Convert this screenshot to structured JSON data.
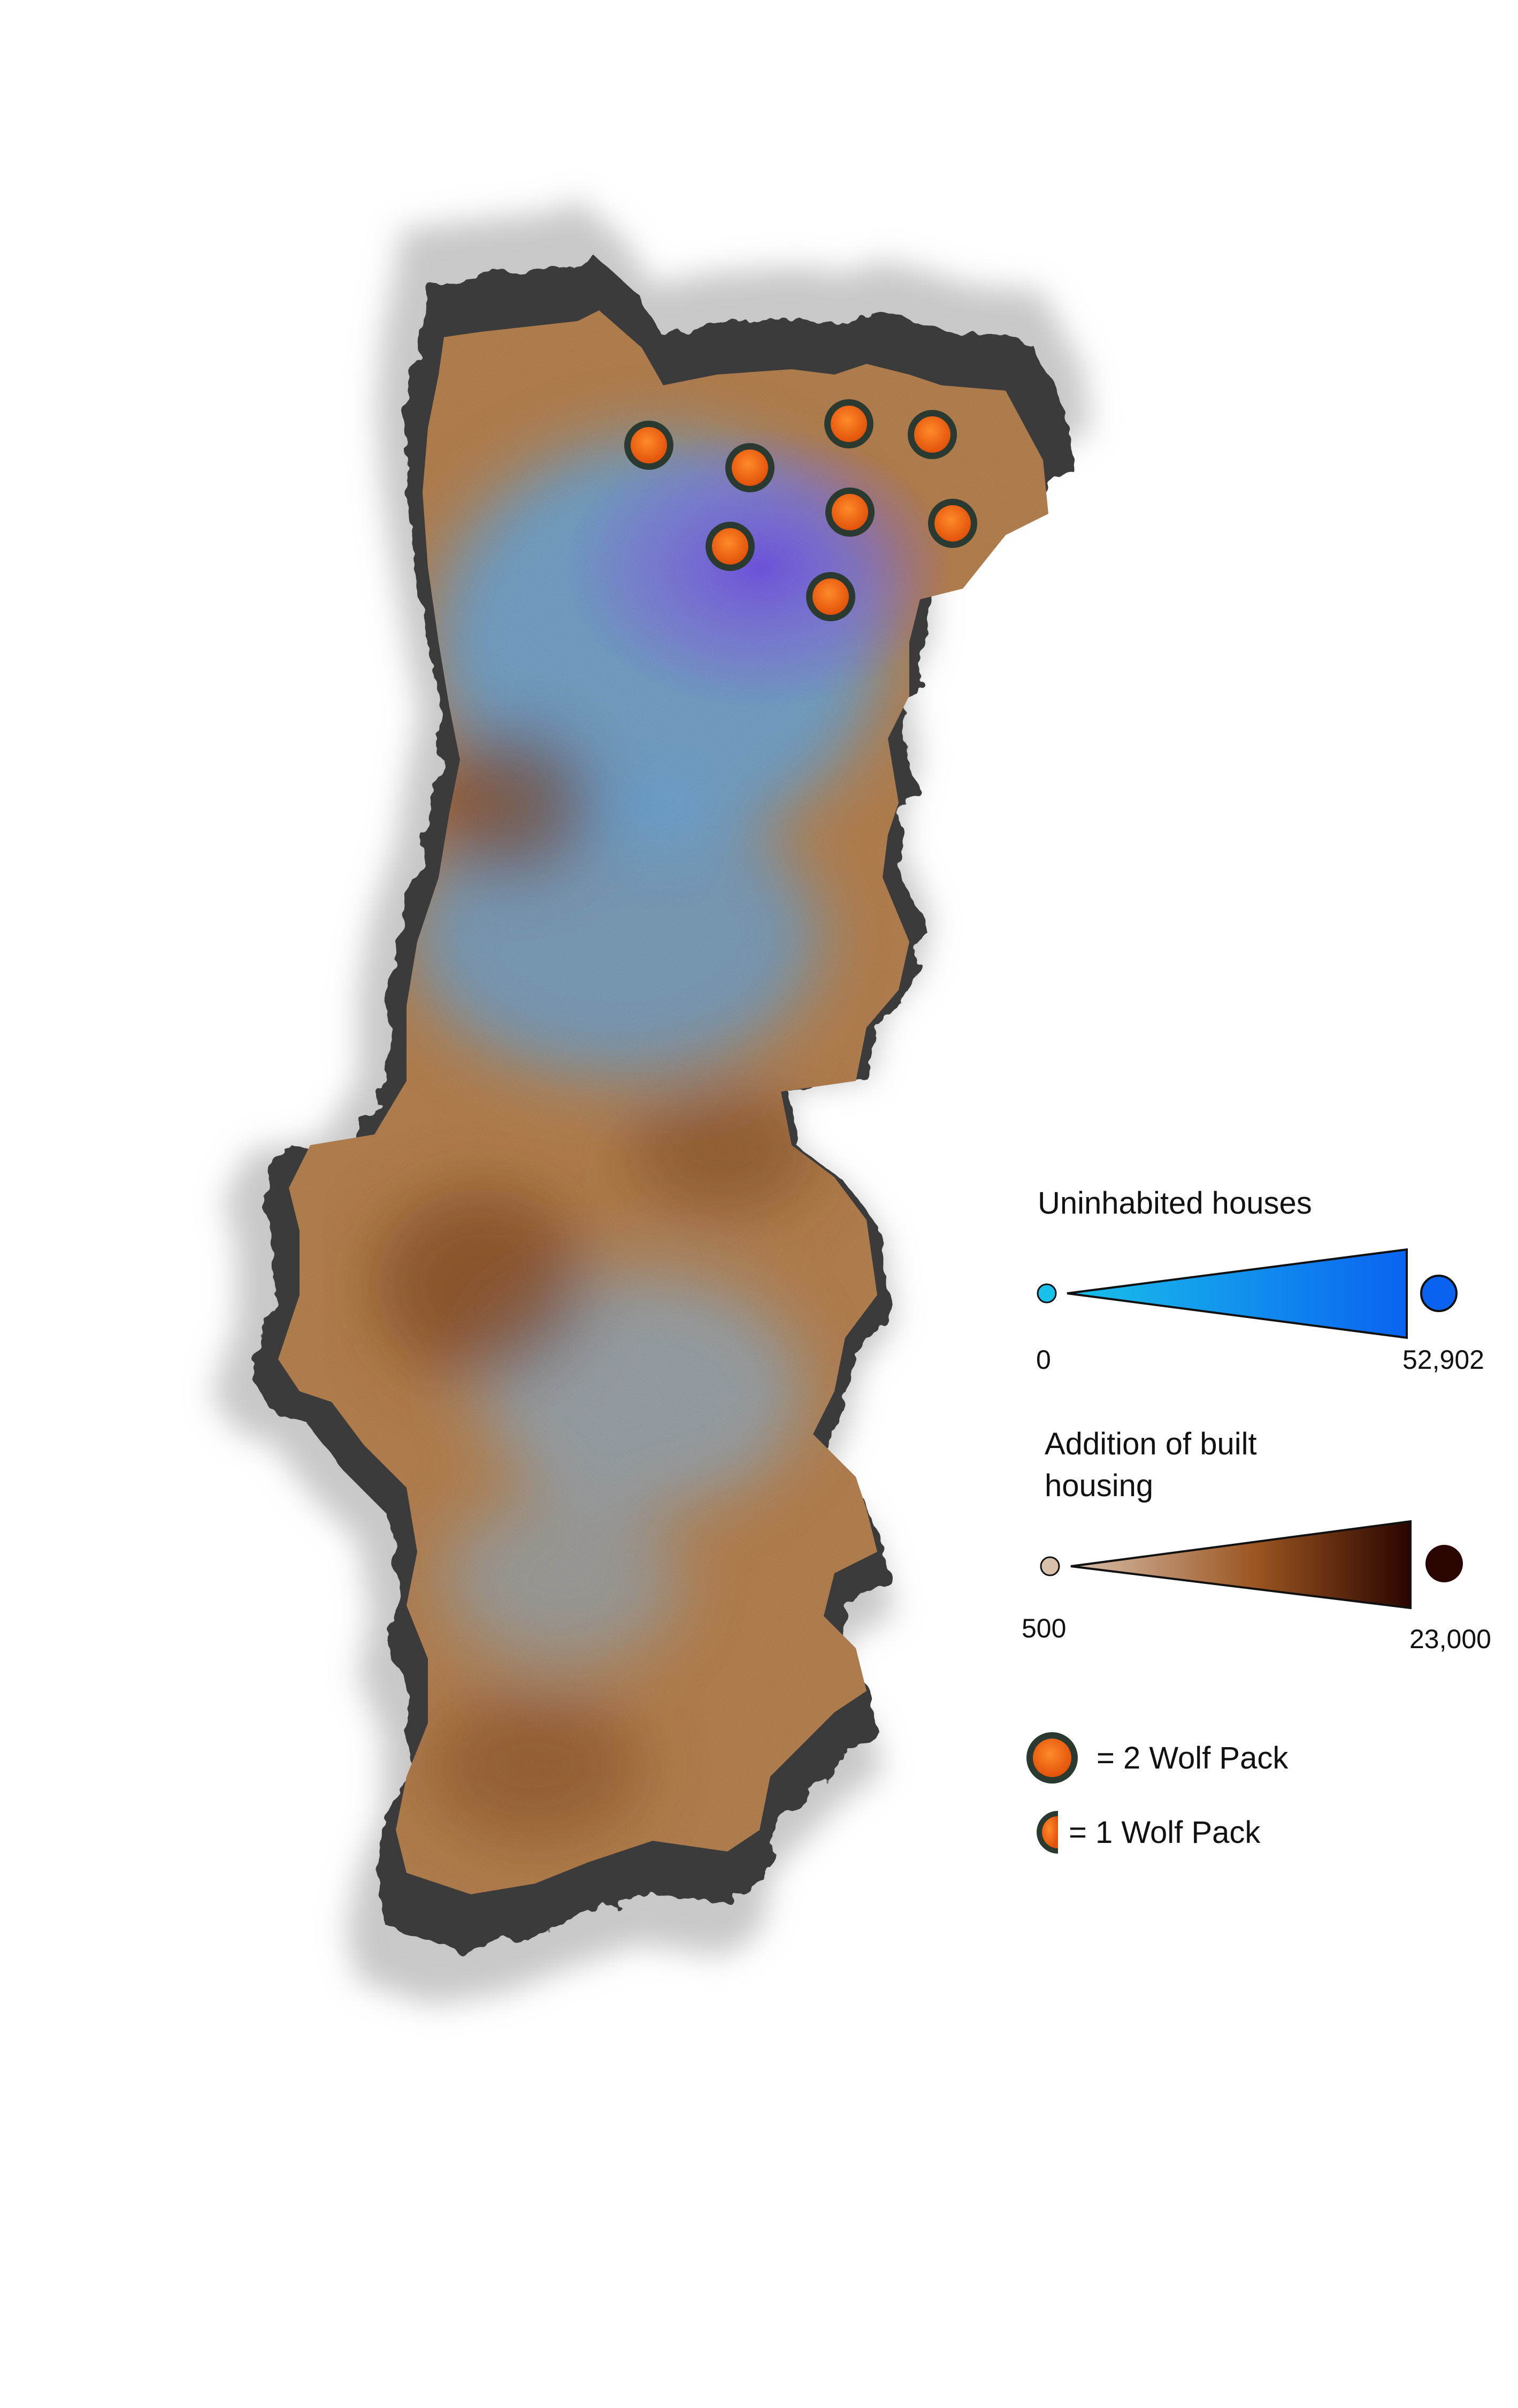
{
  "legend": {
    "uninhabited": {
      "title": "Uninhabited houses",
      "min_label": "0",
      "max_label": "52,902",
      "color_low": "#19c1ea",
      "color_high": "#0a63f0"
    },
    "built_housing": {
      "title_line1": "Addition of built",
      "title_line2": "housing",
      "min_label": "500",
      "max_label": "23,000",
      "color_low": "#d8c0ac",
      "color_high": "#2a0500"
    },
    "wolf_full_label": "= 2 Wolf Pack",
    "wolf_half_label": "= 1 Wolf Pack"
  },
  "colors": {
    "land_brown": "#c28a55",
    "land_dark_brown": "#7a3d18",
    "land_blue": "#6fb0ea",
    "land_purple": "#8f6cf2",
    "border_shadow": "#3a3a3a",
    "wolf_fill": "#f26b10",
    "wolf_outline": "#2b3a30"
  },
  "icons": {
    "wolf_pack_full": "wolf-pack-circle-icon",
    "wolf_pack_half": "wolf-pack-half-circle-icon"
  }
}
